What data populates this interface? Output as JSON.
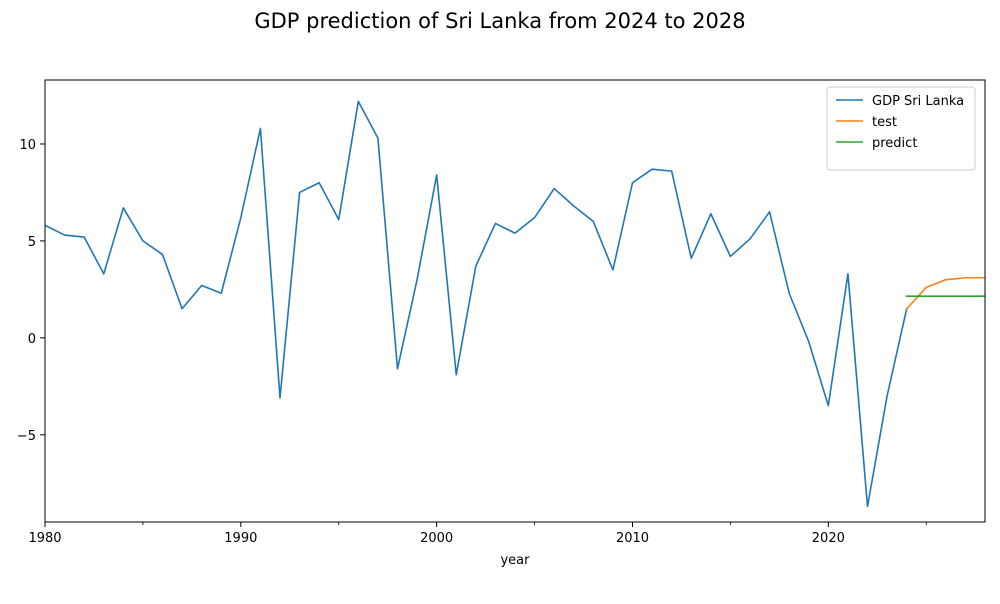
{
  "chart_data": {
    "type": "line",
    "title": "GDP prediction of Sri Lanka from 2024 to 2028",
    "xlabel": "year",
    "ylabel": "",
    "xlim": [
      1980,
      2028
    ],
    "ylim": [
      -9.5,
      13.3
    ],
    "grid": false,
    "legend_position": "top-right",
    "x_ticks": [
      1980,
      1990,
      2000,
      2010,
      2020
    ],
    "x_tick_labels": [
      "1980",
      "1990",
      "2000",
      "2010",
      "2020"
    ],
    "x_minor_ticks": [
      1985,
      1995,
      2005,
      2015,
      2025
    ],
    "y_ticks": [
      -5,
      0,
      5,
      10
    ],
    "y_tick_labels": [
      "−5",
      "0",
      "5",
      "10"
    ],
    "series": [
      {
        "name": "GDP Sri Lanka",
        "color": "#1f77b4",
        "x": [
          1980,
          1981,
          1982,
          1983,
          1984,
          1985,
          1986,
          1987,
          1988,
          1989,
          1990,
          1991,
          1992,
          1993,
          1994,
          1995,
          1996,
          1997,
          1998,
          1999,
          2000,
          2001,
          2002,
          2003,
          2004,
          2005,
          2006,
          2007,
          2008,
          2009,
          2010,
          2011,
          2012,
          2013,
          2014,
          2015,
          2016,
          2017,
          2018,
          2019,
          2020,
          2021,
          2022,
          2023,
          2024
        ],
        "values": [
          5.8,
          5.3,
          5.2,
          3.3,
          6.7,
          5.0,
          4.3,
          1.5,
          2.7,
          2.3,
          6.2,
          10.8,
          -3.1,
          7.5,
          8.0,
          6.1,
          12.2,
          10.3,
          -1.6,
          3.0,
          8.4,
          -1.9,
          3.7,
          5.9,
          5.4,
          6.2,
          7.7,
          6.8,
          6.0,
          3.5,
          8.0,
          8.7,
          8.6,
          4.1,
          6.4,
          4.2,
          5.1,
          6.5,
          2.3,
          -0.2,
          -3.5,
          3.3,
          -8.7,
          -3.0,
          1.5
        ]
      },
      {
        "name": "test",
        "color": "#ff7f0e",
        "x": [
          2024,
          2025,
          2026,
          2027,
          2028
        ],
        "values": [
          1.5,
          2.6,
          3.0,
          3.1,
          3.1
        ]
      },
      {
        "name": "predict",
        "color": "#2ca02c",
        "x": [
          2024,
          2025,
          2026,
          2027,
          2028
        ],
        "values": [
          2.15,
          2.15,
          2.15,
          2.15,
          2.15
        ]
      }
    ]
  }
}
